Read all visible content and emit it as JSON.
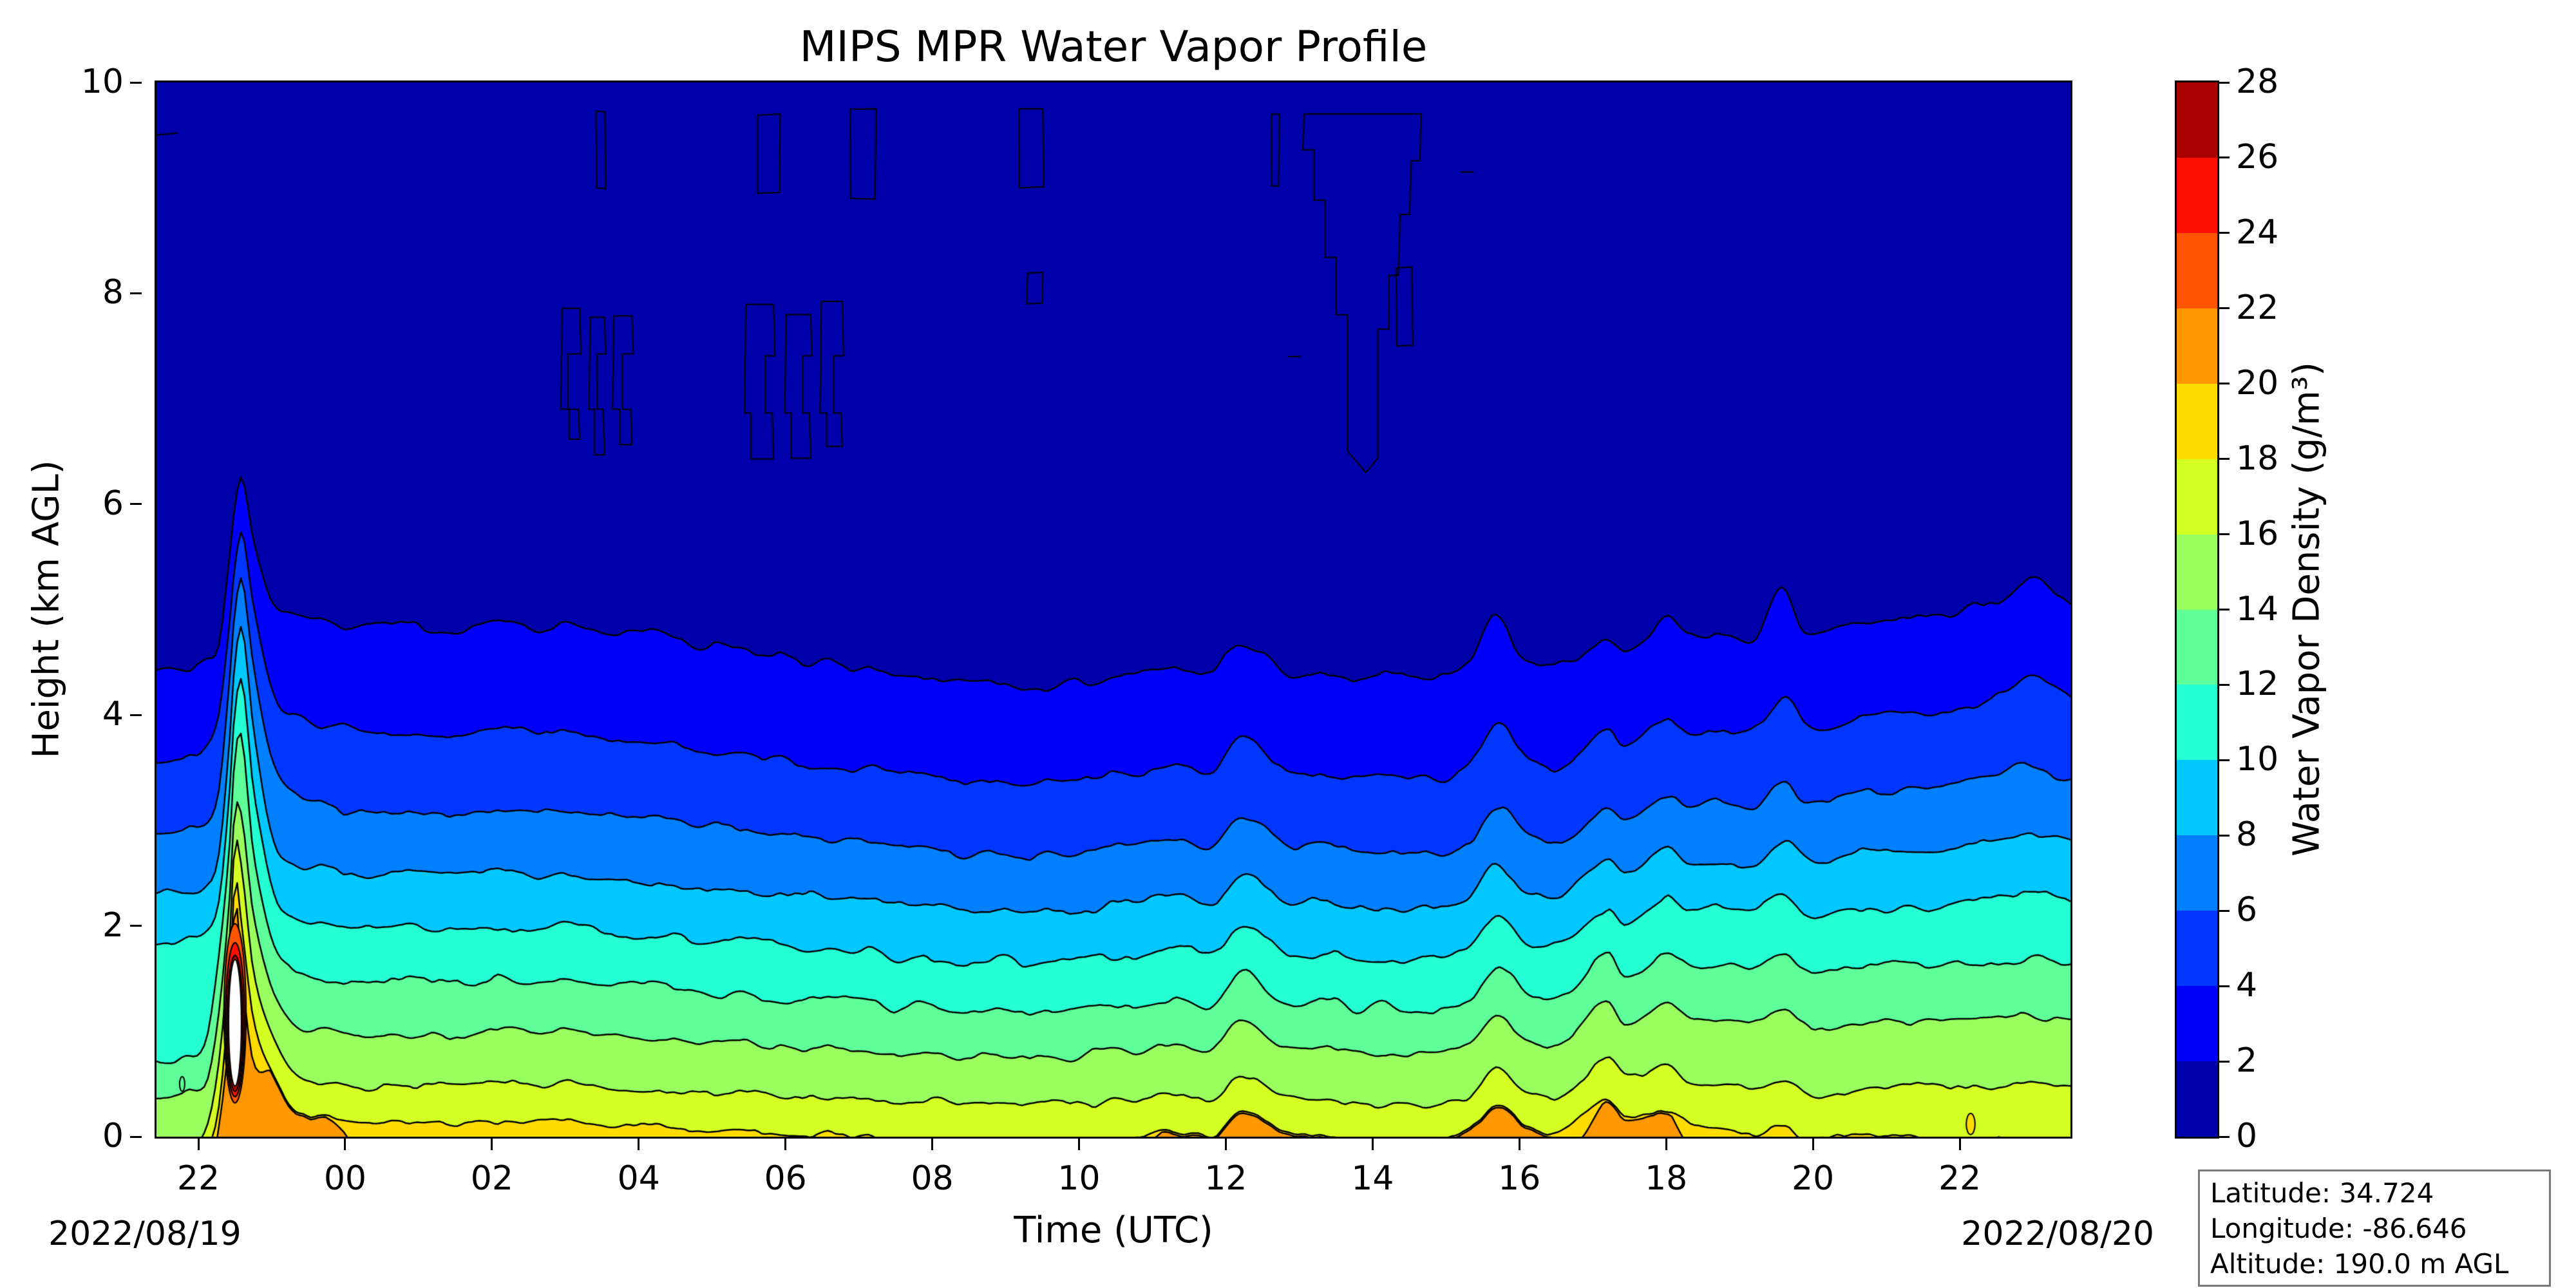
{
  "title": "MIPS MPR Water Vapor Profile",
  "axes": {
    "xlabel": "Time (UTC)",
    "ylabel": "Height (km AGL)",
    "date_left": "2022/08/19",
    "date_right": "2022/08/20",
    "xtick_labels": [
      "22",
      "00",
      "02",
      "04",
      "06",
      "08",
      "10",
      "12",
      "14",
      "16",
      "18",
      "20",
      "22"
    ],
    "xtick_hours": [
      22,
      24,
      26,
      28,
      30,
      32,
      34,
      36,
      38,
      40,
      42,
      44,
      46
    ],
    "ytick_values": [
      0,
      2,
      4,
      6,
      8,
      10
    ]
  },
  "colorbar": {
    "label": "Water Vapor Density (g/m³)",
    "tick_values": [
      0,
      2,
      4,
      6,
      8,
      10,
      12,
      14,
      16,
      18,
      20,
      22,
      24,
      26,
      28
    ]
  },
  "info_box": {
    "lines": [
      "Latitude: 34.724",
      "Longitude: -86.646",
      "Altitude: 190.0 m AGL"
    ]
  },
  "chart_data": {
    "type": "heatmap",
    "plot_style": "filled_contour_time_height",
    "title": "MIPS MPR Water Vapor Profile",
    "xlabel": "Time (UTC)",
    "ylabel": "Height (km AGL)",
    "zlabel": "Water Vapor Density (g/m³)",
    "x_units": "hours_since_2022-08-19T00:00Z",
    "xlim": [
      21.43,
      47.51
    ],
    "ylim": [
      0,
      10
    ],
    "zlim": [
      0,
      28
    ],
    "grid": false,
    "legend_position": "right-colorbar",
    "levels": [
      0,
      2,
      4,
      6,
      8,
      10,
      12,
      14,
      16,
      18,
      20,
      22,
      24,
      26,
      28
    ],
    "band_colors": [
      "#0000aa",
      "#0000fa",
      "#0037ff",
      "#0080ff",
      "#00c8ff",
      "#23ffd3",
      "#5eff99",
      "#99ff5e",
      "#d3ff23",
      "#ffdb00",
      "#ff9700",
      "#ff5400",
      "#ff1000",
      "#a90000"
    ],
    "over_color": "#ffffff",
    "contour_line_color": "#000000",
    "boundary_levels": [
      2,
      4,
      6,
      8,
      10,
      12,
      14,
      16,
      18,
      20
    ],
    "boundary_keyframes": {
      "times": [
        21.43,
        21.8,
        22.1,
        22.28,
        22.42,
        22.5,
        22.6,
        22.75,
        23.0,
        23.3,
        23.8,
        24.5,
        25.5,
        26.5,
        27.5,
        28.5,
        29.5,
        30.5,
        31.5,
        32.5,
        33.5,
        34.5,
        35.3,
        35.8,
        36.2,
        36.7,
        37.5,
        38.5,
        39.3,
        39.68,
        40.1,
        40.7,
        41.2,
        41.45,
        42.0,
        42.3,
        42.7,
        43.2,
        43.6,
        43.9,
        44.5,
        45.2,
        46.0,
        46.6,
        46.95,
        47.51
      ],
      "heights_km": [
        [
          4.4,
          4.45,
          4.55,
          4.7,
          5.5,
          6.0,
          6.25,
          5.7,
          5.1,
          4.95,
          4.85,
          4.82,
          4.8,
          4.85,
          4.8,
          4.72,
          4.6,
          4.5,
          4.4,
          4.32,
          4.28,
          4.35,
          4.45,
          4.4,
          4.7,
          4.45,
          4.38,
          4.35,
          4.42,
          4.95,
          4.48,
          4.52,
          4.72,
          4.6,
          4.95,
          4.72,
          4.78,
          4.72,
          5.18,
          4.82,
          4.88,
          4.92,
          5.02,
          5.12,
          5.3,
          5.06
        ],
        [
          3.55,
          3.6,
          3.66,
          4.0,
          4.9,
          5.5,
          5.8,
          5.1,
          4.3,
          4.0,
          3.88,
          3.84,
          3.8,
          3.85,
          3.8,
          3.72,
          3.62,
          3.52,
          3.46,
          3.4,
          3.36,
          3.42,
          3.5,
          3.46,
          3.78,
          3.52,
          3.44,
          3.4,
          3.46,
          3.92,
          3.54,
          3.58,
          3.8,
          3.66,
          4.0,
          3.8,
          3.86,
          3.82,
          4.18,
          3.92,
          3.96,
          4.0,
          4.1,
          4.2,
          4.35,
          4.14
        ],
        [
          2.88,
          2.92,
          2.97,
          3.3,
          4.3,
          5.0,
          5.3,
          4.5,
          3.6,
          3.25,
          3.12,
          3.08,
          3.05,
          3.1,
          3.05,
          2.98,
          2.9,
          2.82,
          2.76,
          2.7,
          2.66,
          2.72,
          2.8,
          2.76,
          3.04,
          2.82,
          2.74,
          2.7,
          2.76,
          3.12,
          2.84,
          2.88,
          3.1,
          2.96,
          3.28,
          3.1,
          3.16,
          3.12,
          3.4,
          3.2,
          3.24,
          3.28,
          3.36,
          3.44,
          3.52,
          3.4
        ],
        [
          2.3,
          2.33,
          2.37,
          2.7,
          3.7,
          4.5,
          4.8,
          3.9,
          2.9,
          2.62,
          2.52,
          2.48,
          2.45,
          2.5,
          2.45,
          2.4,
          2.34,
          2.28,
          2.22,
          2.17,
          2.13,
          2.19,
          2.26,
          2.22,
          2.5,
          2.28,
          2.21,
          2.17,
          2.23,
          2.56,
          2.31,
          2.35,
          2.58,
          2.44,
          2.74,
          2.58,
          2.63,
          2.59,
          2.8,
          2.64,
          2.68,
          2.71,
          2.76,
          2.81,
          2.87,
          2.79
        ],
        [
          1.84,
          1.87,
          1.9,
          2.2,
          3.2,
          4.05,
          4.3,
          3.3,
          2.4,
          2.1,
          2.0,
          1.97,
          1.94,
          1.99,
          1.95,
          1.9,
          1.84,
          1.78,
          1.73,
          1.68,
          1.65,
          1.7,
          1.77,
          1.73,
          1.99,
          1.79,
          1.72,
          1.68,
          1.74,
          2.06,
          1.82,
          1.86,
          2.12,
          1.95,
          2.28,
          2.12,
          2.16,
          2.12,
          2.26,
          2.1,
          2.13,
          2.16,
          2.2,
          2.25,
          2.3,
          2.24
        ],
        [
          0.72,
          0.78,
          0.88,
          1.7,
          2.7,
          3.6,
          3.75,
          2.7,
          1.9,
          1.6,
          1.5,
          1.47,
          1.44,
          1.49,
          1.45,
          1.4,
          1.34,
          1.29,
          1.25,
          1.21,
          1.18,
          1.23,
          1.3,
          1.26,
          1.58,
          1.32,
          1.26,
          1.22,
          1.28,
          1.6,
          1.36,
          1.4,
          1.72,
          1.5,
          1.8,
          1.6,
          1.63,
          1.58,
          1.7,
          1.56,
          1.59,
          1.61,
          1.64,
          1.67,
          1.71,
          1.66
        ],
        [
          0.4,
          0.44,
          0.52,
          1.2,
          2.2,
          3.1,
          3.0,
          2.1,
          1.45,
          1.1,
          1.0,
          0.97,
          0.94,
          0.99,
          0.95,
          0.91,
          0.87,
          0.83,
          0.8,
          0.77,
          0.75,
          0.79,
          0.86,
          0.82,
          1.1,
          0.88,
          0.82,
          0.79,
          0.84,
          1.14,
          0.92,
          0.96,
          1.26,
          1.05,
          1.3,
          1.1,
          1.12,
          1.06,
          1.16,
          1.04,
          1.07,
          1.09,
          1.1,
          1.12,
          1.15,
          1.1
        ],
        [
          -0.2,
          -0.15,
          0.05,
          0.7,
          1.8,
          2.78,
          2.5,
          1.6,
          1.0,
          0.62,
          0.52,
          0.49,
          0.46,
          0.51,
          0.47,
          0.44,
          0.41,
          0.38,
          0.35,
          0.32,
          0.3,
          0.33,
          0.39,
          0.35,
          0.6,
          0.4,
          0.34,
          0.3,
          0.35,
          0.62,
          0.42,
          0.46,
          0.72,
          0.55,
          0.7,
          0.52,
          0.5,
          0.44,
          0.52,
          0.42,
          0.45,
          0.47,
          0.48,
          0.5,
          0.52,
          0.49
        ],
        [
          -1.0,
          -0.8,
          -0.2,
          0.3,
          1.4,
          2.49,
          2.0,
          1.15,
          0.62,
          0.28,
          0.18,
          0.14,
          0.1,
          0.15,
          0.11,
          0.08,
          0.05,
          0.02,
          -0.02,
          -0.05,
          -0.08,
          -0.04,
          0.04,
          0.0,
          0.25,
          0.06,
          0.0,
          -0.05,
          0.02,
          0.3,
          0.08,
          0.12,
          0.35,
          0.18,
          0.28,
          0.12,
          0.08,
          0.02,
          0.1,
          0.0,
          0.02,
          0.0,
          -0.04,
          -0.03,
          -0.02,
          -0.04
        ],
        [
          -1.0,
          -1.0,
          -0.6,
          0.1,
          1.0,
          2.24,
          1.5,
          0.75,
          0.65,
          0.55,
          0.15,
          -0.3,
          -0.35,
          -0.35,
          -0.35,
          -0.35,
          -0.35,
          -0.35,
          -0.35,
          -0.35,
          -0.35,
          -0.3,
          0.12,
          0.45,
          0.32,
          0.15,
          0.28,
          -0.05,
          0.25,
          0.88,
          0.3,
          -0.1,
          0.3,
          0.12,
          0.25,
          -0.1,
          -0.3,
          -0.3,
          -0.3,
          -0.3,
          -0.3,
          -0.3,
          -0.3,
          -0.3,
          -0.3,
          -0.3
        ]
      ]
    },
    "surface_plume": {
      "time_utc": "2022/08/19 22:30",
      "peak_top_km": 6.25,
      "cores": [
        {
          "level": 22,
          "t": 22.5,
          "width_h": 0.3,
          "h0": 0.32,
          "h1": 2.02
        },
        {
          "level": 24,
          "t": 22.5,
          "width_h": 0.26,
          "h0": 0.38,
          "h1": 1.84
        },
        {
          "level": 26,
          "t": 22.5,
          "width_h": 0.22,
          "h0": 0.43,
          "h1": 1.72
        },
        {
          "level": "over",
          "t": 22.5,
          "width_h": 0.175,
          "h0": 0.48,
          "h1": 1.68
        }
      ]
    },
    "upper_level_wisps": [
      {
        "kind": "box",
        "t0": 27.42,
        "t1": 27.55,
        "h0": 9.0,
        "h1": 9.72
      },
      {
        "kind": "cols",
        "t0": 26.95,
        "t1": 27.95,
        "h0": 6.45,
        "h1": 7.95
      },
      {
        "kind": "box",
        "t0": 29.62,
        "t1": 29.92,
        "h0": 8.95,
        "h1": 9.7
      },
      {
        "kind": "box",
        "t0": 30.88,
        "t1": 31.22,
        "h0": 8.9,
        "h1": 9.75
      },
      {
        "kind": "cols",
        "t0": 29.45,
        "t1": 30.9,
        "h0": 6.4,
        "h1": 7.95
      },
      {
        "kind": "box",
        "t0": 33.18,
        "t1": 33.52,
        "h0": 9.0,
        "h1": 9.75
      },
      {
        "kind": "box",
        "t0": 33.3,
        "t1": 33.5,
        "h0": 7.9,
        "h1": 8.2
      },
      {
        "kind": "box",
        "t0": 36.62,
        "t1": 36.72,
        "h0": 9.02,
        "h1": 9.7
      },
      {
        "kind": "line",
        "t0": 36.85,
        "t1": 37.02,
        "h0": 7.4,
        "h1": 7.4
      },
      {
        "kind": "funnel",
        "t0": 37.05,
        "t1": 38.68,
        "h0": 6.3,
        "h1": 9.7
      },
      {
        "kind": "box",
        "t0": 38.32,
        "t1": 38.55,
        "h0": 7.5,
        "h1": 8.25
      },
      {
        "kind": "line",
        "t0": 39.2,
        "t1": 39.38,
        "h0": 9.15,
        "h1": 9.15
      },
      {
        "kind": "line",
        "t0": 21.43,
        "t1": 21.72,
        "h0": 9.5,
        "h1": 9.52
      }
    ],
    "specks": [
      {
        "t": 21.78,
        "h": 0.5,
        "rx": 0.035,
        "ry": 0.07,
        "fill": null
      },
      {
        "t": 46.15,
        "h": 0.12,
        "rx": 0.06,
        "ry": 0.1,
        "fill": "#ffdb00"
      }
    ]
  }
}
